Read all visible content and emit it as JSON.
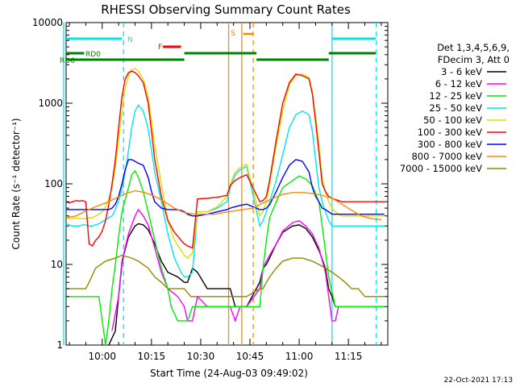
{
  "chart_data": {
    "type": "line",
    "title": "RHESSI Observing Summary Count Rates",
    "xlabel": "Start Time (24-Aug-03 09:49:02)",
    "ylabel": "Count Rate (s⁻¹ detector⁻¹)",
    "x_units": "minutes after 09:49:02",
    "xlim": [
      0,
      98
    ],
    "ylim": [
      1,
      10000
    ],
    "yscale": "log",
    "x_ticks": [
      {
        "t": 11,
        "label": "10:00"
      },
      {
        "t": 26,
        "label": "10:15"
      },
      {
        "t": 41,
        "label": "10:30"
      },
      {
        "t": 56,
        "label": "10:45"
      },
      {
        "t": 71,
        "label": "11:00"
      },
      {
        "t": 86,
        "label": "11:15"
      }
    ],
    "y_ticks": [
      {
        "v": 1,
        "label": "1"
      },
      {
        "v": 10,
        "label": "10"
      },
      {
        "v": 100,
        "label": "100"
      },
      {
        "v": 1000,
        "label": "1000"
      },
      {
        "v": 10000,
        "label": "10000"
      }
    ],
    "legend": {
      "header": [
        "Det 1,3,4,5,6,9,",
        "FDecim 3, Att 0"
      ],
      "position": "right"
    },
    "series": [
      {
        "name": "3 - 6 keV",
        "color": "#000000",
        "x": [
          13,
          15,
          16,
          17,
          17.5,
          19,
          21,
          22,
          23.5,
          25,
          27,
          29,
          31,
          34,
          36,
          37,
          38.5,
          40,
          43,
          46,
          49,
          50,
          51.5,
          53,
          55,
          59,
          60,
          61,
          62,
          64,
          66,
          69,
          71,
          73,
          75,
          77,
          79,
          80,
          81,
          82,
          83
        ],
        "y": [
          1,
          1.5,
          4,
          10,
          13,
          22,
          30,
          32,
          31,
          27,
          18,
          11,
          8,
          7,
          6,
          6,
          9,
          8,
          5,
          5,
          5,
          5,
          3,
          3,
          3,
          6,
          9,
          10,
          12,
          18,
          25,
          30,
          31,
          28,
          22,
          15,
          9,
          5,
          4,
          3,
          3
        ]
      },
      {
        "name": "6 - 12 keV",
        "color": "#ff00ff",
        "x": [
          14,
          16,
          17,
          19,
          21,
          22,
          23.5,
          25,
          27,
          29,
          31,
          34,
          36,
          37,
          38.5,
          40,
          43,
          46,
          49,
          50,
          51.5,
          53,
          55,
          59,
          60,
          61,
          62,
          64,
          66,
          69,
          71,
          73,
          75,
          77,
          79,
          80,
          81,
          82,
          83,
          84,
          86,
          88,
          91,
          93,
          95,
          97
        ],
        "y": [
          1.5,
          4,
          11,
          24,
          40,
          48,
          40,
          31,
          16,
          8,
          5,
          4,
          3,
          2,
          2,
          4,
          3,
          3,
          3,
          3,
          2,
          3,
          3,
          5,
          9,
          11,
          13,
          18,
          26,
          33,
          35,
          30,
          24,
          16,
          8,
          4,
          2,
          2,
          3,
          3,
          3,
          3,
          3,
          3,
          3,
          3
        ]
      },
      {
        "name": "12 - 25 keV",
        "color": "#00ee00",
        "x": [
          0,
          2,
          4,
          6,
          8,
          10,
          12,
          13,
          14,
          15,
          16,
          17,
          19,
          20,
          21,
          22,
          23.5,
          25,
          27,
          29,
          31,
          32,
          34,
          36,
          37,
          38.5,
          40,
          43,
          46,
          49,
          50,
          51.5,
          53,
          55,
          59,
          60,
          61,
          62,
          64,
          66,
          69,
          71,
          73,
          75,
          77,
          78,
          80,
          82,
          83,
          84,
          86,
          88,
          91,
          93,
          95,
          97
        ],
        "y": [
          4,
          4,
          4,
          4,
          4,
          4,
          1,
          2,
          5,
          10,
          22,
          45,
          90,
          130,
          145,
          120,
          80,
          45,
          20,
          9,
          5,
          3,
          2,
          2,
          2,
          3,
          3,
          3,
          3,
          3,
          3,
          3,
          3,
          3,
          3,
          9,
          20,
          38,
          60,
          90,
          110,
          125,
          115,
          95,
          60,
          30,
          7,
          3,
          3,
          3,
          3,
          3,
          3,
          3,
          3,
          3
        ]
      },
      {
        "name": "25 - 50 keV",
        "color": "#00e5ee",
        "x": [
          0,
          1,
          2,
          3,
          4,
          5,
          6,
          7,
          8,
          9,
          10,
          11,
          12,
          13,
          14,
          15,
          16,
          17,
          18,
          19,
          20,
          21,
          22,
          23.5,
          25,
          26,
          27,
          29,
          31,
          33,
          35,
          36,
          37,
          38.5,
          40,
          43,
          46,
          49,
          50,
          51.5,
          53,
          55,
          59,
          60,
          61,
          62,
          64,
          66,
          68,
          70,
          72,
          74,
          75,
          76,
          77,
          78,
          79,
          80,
          81,
          82,
          83,
          84,
          86,
          88,
          91,
          93,
          95,
          97
        ],
        "y": [
          32,
          31,
          30,
          30,
          30,
          31,
          31,
          30,
          30,
          31,
          32,
          34,
          36,
          38,
          40,
          48,
          62,
          85,
          140,
          260,
          500,
          800,
          950,
          800,
          480,
          260,
          140,
          60,
          24,
          12,
          8,
          7,
          7,
          8,
          45,
          45,
          50,
          60,
          90,
          130,
          150,
          165,
          30,
          35,
          45,
          60,
          110,
          230,
          500,
          720,
          800,
          720,
          450,
          200,
          90,
          60,
          45,
          35,
          30,
          30,
          30,
          30,
          30,
          30,
          30,
          30,
          30,
          30
        ]
      },
      {
        "name": "50 - 100 keV",
        "color": "#dddd00",
        "x": [
          0,
          1,
          2,
          3,
          4,
          5,
          6,
          7,
          8,
          9,
          10,
          11,
          12,
          13,
          14,
          15,
          16,
          17,
          18,
          19,
          20,
          21,
          22,
          23.5,
          25,
          26,
          27,
          29,
          31,
          33,
          35,
          36,
          37,
          38.5,
          40,
          43,
          46,
          49,
          50,
          51.5,
          53,
          55,
          59,
          60,
          61,
          62,
          64,
          66,
          68,
          70,
          72,
          74,
          75,
          76,
          77,
          78,
          79,
          80,
          81,
          82,
          83,
          84,
          86,
          88,
          91,
          93,
          95,
          97
        ],
        "y": [
          38,
          37,
          37,
          38,
          37,
          37,
          37,
          38,
          38,
          40,
          42,
          45,
          52,
          65,
          90,
          160,
          350,
          800,
          1500,
          2200,
          2600,
          2700,
          2500,
          2000,
          1200,
          600,
          300,
          100,
          35,
          20,
          15,
          13,
          12,
          14,
          45,
          45,
          52,
          70,
          100,
          140,
          160,
          175,
          40,
          45,
          60,
          100,
          300,
          800,
          1700,
          2200,
          2300,
          2100,
          1400,
          700,
          300,
          120,
          80,
          60,
          50,
          45,
          42,
          40,
          40,
          40,
          40,
          40,
          40,
          40
        ]
      },
      {
        "name": "100 - 300 keV",
        "color": "#ff0000",
        "x": [
          0,
          1,
          2,
          3,
          4,
          5,
          6,
          7,
          8,
          9,
          10,
          11,
          12,
          13,
          14,
          15,
          16,
          17,
          18,
          19,
          20,
          21,
          22,
          23.5,
          25,
          26,
          27,
          29,
          31,
          33,
          35,
          36,
          37,
          38.5,
          40,
          43,
          46,
          49,
          50,
          51.5,
          53,
          55,
          59,
          60,
          61,
          62,
          64,
          66,
          68,
          70,
          72,
          74,
          75,
          76,
          77,
          78,
          79,
          80,
          81,
          82,
          83,
          84,
          86,
          88,
          91,
          93,
          95,
          97
        ],
        "y": [
          60,
          58,
          60,
          62,
          61,
          62,
          60,
          18,
          17,
          20,
          22,
          26,
          35,
          55,
          100,
          200,
          500,
          1200,
          2000,
          2400,
          2500,
          2400,
          2200,
          1800,
          1000,
          450,
          200,
          70,
          35,
          25,
          20,
          18,
          17,
          16,
          65,
          66,
          68,
          72,
          95,
          110,
          120,
          130,
          60,
          62,
          70,
          110,
          350,
          1000,
          1800,
          2300,
          2200,
          2000,
          1300,
          600,
          250,
          100,
          80,
          70,
          66,
          64,
          62,
          60,
          60,
          60,
          60,
          60,
          60,
          60
        ]
      },
      {
        "name": "300 - 800 keV",
        "color": "#0000ff",
        "x": [
          0,
          2,
          4,
          6,
          7,
          8,
          10,
          12,
          13,
          14,
          15,
          16,
          17,
          18,
          19,
          20,
          21,
          22,
          23.5,
          25,
          26,
          27,
          29,
          31,
          33,
          35,
          36,
          37,
          38.5,
          40,
          43,
          46,
          49,
          50,
          51.5,
          53,
          55,
          59,
          60,
          61,
          62,
          64,
          66,
          68,
          70,
          72,
          74,
          75,
          76,
          77,
          78,
          79,
          80,
          81,
          82,
          83,
          84,
          86,
          88,
          91,
          93,
          95,
          97
        ],
        "y": [
          48,
          48,
          48,
          48,
          48,
          48,
          48,
          48,
          48,
          50,
          56,
          70,
          100,
          150,
          200,
          200,
          190,
          180,
          170,
          120,
          80,
          60,
          50,
          48,
          48,
          47,
          45,
          42,
          40,
          40,
          42,
          45,
          48,
          50,
          52,
          54,
          56,
          48,
          48,
          50,
          55,
          80,
          120,
          170,
          200,
          190,
          140,
          90,
          70,
          60,
          50,
          48,
          45,
          42,
          42,
          42,
          42,
          42,
          42,
          42,
          42,
          42,
          42
        ]
      },
      {
        "name": "800 - 7000 keV",
        "color": "#ff8800",
        "x": [
          0,
          3,
          6,
          9,
          12,
          15,
          18,
          21,
          24,
          27,
          30,
          33,
          36,
          39,
          42,
          45,
          48,
          51,
          54,
          57,
          60,
          63,
          66,
          69,
          72,
          75,
          78,
          81,
          84,
          87,
          90,
          93,
          96
        ],
        "y": [
          38,
          40,
          46,
          52,
          58,
          66,
          75,
          82,
          78,
          70,
          60,
          50,
          44,
          42,
          42,
          42,
          44,
          46,
          48,
          50,
          58,
          66,
          74,
          78,
          78,
          76,
          72,
          66,
          56,
          47,
          40,
          37,
          36
        ]
      },
      {
        "name": "7000 - 15000 keV",
        "color": "#8b8b00",
        "x": [
          0,
          3,
          6,
          7,
          9,
          12,
          15,
          17,
          20,
          22,
          25,
          27,
          29,
          31,
          33,
          36,
          38,
          40,
          44,
          48,
          52,
          55,
          59,
          60,
          61,
          62,
          64,
          66,
          69,
          72,
          75,
          77,
          79,
          81,
          83,
          85,
          87,
          89,
          91,
          93,
          95,
          97
        ],
        "y": [
          5,
          5,
          5,
          6,
          9,
          11,
          12,
          13,
          12,
          11,
          9,
          7,
          6,
          5,
          5,
          5,
          4,
          4,
          4,
          4,
          4,
          4,
          5,
          5,
          6,
          7,
          9,
          11,
          12,
          12,
          11,
          10,
          9,
          8,
          7,
          6,
          5,
          5,
          4,
          4,
          4,
          4
        ]
      }
    ],
    "annotations": [
      {
        "label": "N",
        "x": 17.5,
        "color": "#00e5ee"
      },
      {
        "label": "F",
        "x": 28,
        "color": "#ff0000"
      },
      {
        "label": "S",
        "x": 53.5,
        "color": "#ff8800"
      },
      {
        "label": "RD0",
        "x": 2,
        "color": "#008000"
      },
      {
        "label": "RD6",
        "x": -2,
        "color": "#008000"
      }
    ],
    "state_bars": {
      "night": [
        [
          0,
          17
        ],
        [
          81,
          98
        ]
      ],
      "flare": [
        [
          29.5,
          35
        ]
      ],
      "saa": [
        [
          54,
          57
        ]
      ],
      "decim_top": [
        [
          0,
          5.5
        ],
        [
          36,
          58
        ],
        [
          80,
          98
        ]
      ],
      "decim_bottom": [
        [
          0,
          36
        ],
        [
          58,
          80
        ]
      ]
    },
    "vertical_lines": [
      {
        "x": 17.5,
        "color": "#00e5ee",
        "dash": true
      },
      {
        "x": 49.5,
        "color": "#ff8800",
        "dash": false
      },
      {
        "x": 53.5,
        "color": "#ff8800",
        "dash": false
      },
      {
        "x": 57.0,
        "color": "#ff8800",
        "dash": true
      },
      {
        "x": 81.0,
        "color": "#00e5ee",
        "dash": false
      },
      {
        "x": 94.5,
        "color": "#00e5ee",
        "dash": true
      },
      {
        "x": -2.5,
        "color": "#00e5ee",
        "dash": false
      }
    ]
  },
  "footer": {
    "timestamp": "22-Oct-2021 17:13"
  }
}
